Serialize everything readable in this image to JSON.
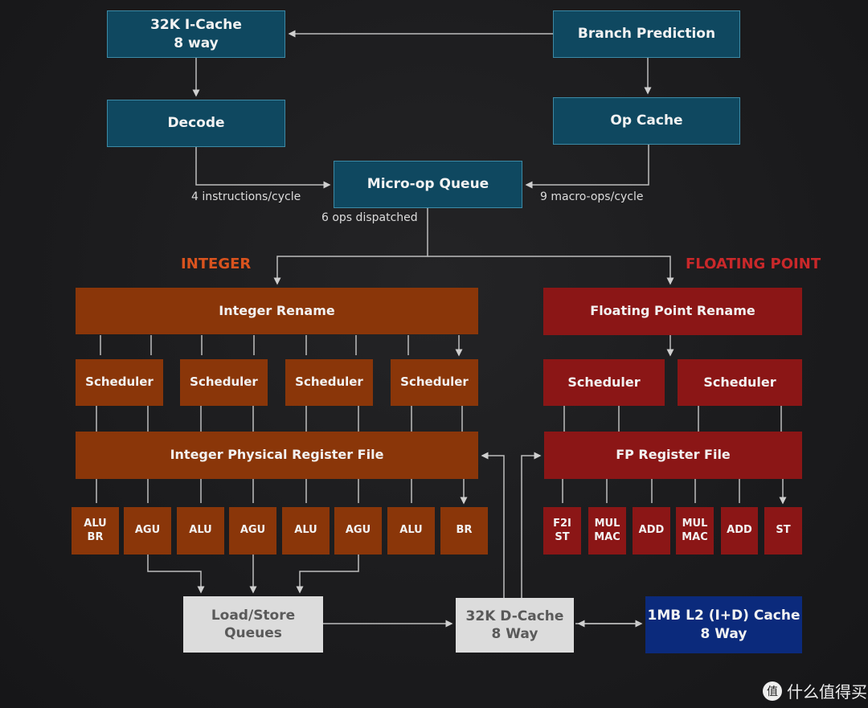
{
  "frontend": {
    "icache": "32K I-Cache\n8 way",
    "branch": "Branch Prediction",
    "decode": "Decode",
    "opcache": "Op Cache",
    "uopq": "Micro-op Queue",
    "decode_rate": "4 instructions/cycle",
    "opcache_rate": "9 macro-ops/cycle",
    "dispatch": "6 ops dispatched"
  },
  "integer": {
    "title": "INTEGER",
    "title_color": "#d9531e",
    "rename": "Integer Rename",
    "schedulers": [
      "Scheduler",
      "Scheduler",
      "Scheduler",
      "Scheduler"
    ],
    "regfile": "Integer Physical Register File",
    "units": [
      "ALU\nBR",
      "AGU",
      "ALU",
      "AGU",
      "ALU",
      "AGU",
      "ALU",
      "BR"
    ]
  },
  "fp": {
    "title": "FLOATING POINT",
    "title_color": "#c9282a",
    "rename": "Floating Point Rename",
    "schedulers": [
      "Scheduler",
      "Scheduler"
    ],
    "regfile": "FP Register File",
    "units": [
      "F2I\nST",
      "MUL\nMAC",
      "ADD",
      "MUL\nMAC",
      "ADD",
      "ST"
    ]
  },
  "memory": {
    "lsq": "Load/Store\nQueues",
    "dcache": "32K D-Cache\n8 Way",
    "l2": "1MB L2 (I+D) Cache\n8 Way"
  },
  "watermark": {
    "icon": "值",
    "text": "什么值得买"
  }
}
